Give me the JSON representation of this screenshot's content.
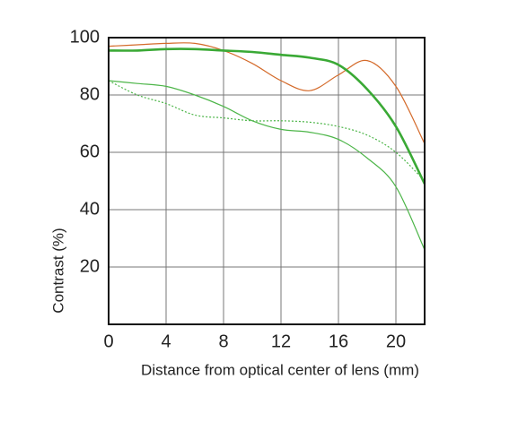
{
  "chart_data": {
    "type": "line",
    "x": [
      0,
      2,
      4,
      6,
      8,
      10,
      12,
      14,
      16,
      18,
      20,
      22
    ],
    "series": [
      {
        "color": "#d46a2a",
        "linestyle": "solid",
        "values": [
          97,
          97.5,
          98,
          98,
          95.5,
          91,
          85,
          81.5,
          87,
          92,
          83,
          63
        ]
      },
      {
        "color": "#3aa935",
        "linestyle": "solid",
        "bold": true,
        "values": [
          95.5,
          95.5,
          96,
          96,
          95.5,
          95,
          94,
          93,
          90.5,
          82,
          69,
          49
        ]
      },
      {
        "color": "#4cb548",
        "linestyle": "solid",
        "values": [
          85,
          84,
          83,
          80,
          76,
          71,
          68,
          67,
          64.5,
          58,
          48,
          26
        ]
      },
      {
        "color": "#4cb548",
        "linestyle": "dotted",
        "values": [
          85,
          80,
          77,
          73,
          72,
          71,
          71,
          70.5,
          69,
          66,
          60,
          50
        ]
      }
    ],
    "xlim": [
      0,
      22
    ],
    "xticks": [
      0,
      4,
      8,
      12,
      16,
      20
    ],
    "ylim": [
      0,
      100
    ],
    "yticks": [
      20,
      40,
      60,
      80,
      100
    ],
    "grid": true,
    "xlabel": "Distance from optical center of lens (mm)",
    "ylabel": "Contrast (%)"
  }
}
